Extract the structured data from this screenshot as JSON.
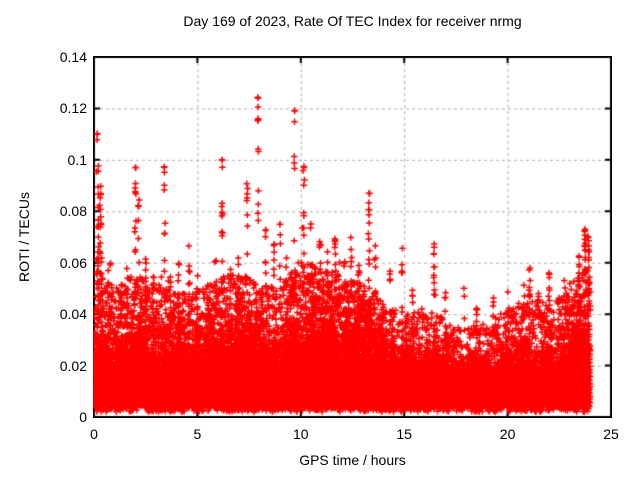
{
  "chart_data": {
    "type": "scatter",
    "title": "Day 169 of 2023, Rate Of TEC Index for receiver nrmg",
    "xlabel": "GPS time / hours",
    "ylabel": "ROTI / TECUs",
    "xlim": [
      0,
      25
    ],
    "ylim": [
      0,
      0.14
    ],
    "xticks": [
      0,
      5,
      10,
      15,
      20,
      25
    ],
    "xtick_labels": [
      "0",
      "5",
      "10",
      "15",
      "20",
      "25"
    ],
    "yticks": [
      0,
      0.02,
      0.04,
      0.06,
      0.08,
      0.1,
      0.12,
      0.14
    ],
    "ytick_labels": [
      "0",
      "0.02",
      "0.04",
      "0.06",
      "0.08",
      "0.1",
      "0.12",
      "0.14"
    ],
    "grid": true,
    "grid_style": "dashed",
    "legend": "none",
    "marker": "plus",
    "marker_color": "#ff0000",
    "grid_color": "#b0b0b0",
    "axis_color": "#000000",
    "background": "#ffffff",
    "data_hours_range": [
      0,
      24
    ],
    "seed": 20230169,
    "density_model": {
      "comment": "dense ROTI scatter: solid band near 0.003-0.03 TECU all day, speckle above it, per-hour envelopes h=0..24",
      "columns_per_hour": 21,
      "y_bottom": 0.002,
      "core_top": [
        0.03,
        0.026,
        0.026,
        0.028,
        0.026,
        0.026,
        0.028,
        0.03,
        0.028,
        0.026,
        0.03,
        0.032,
        0.03,
        0.03,
        0.026,
        0.022,
        0.024,
        0.022,
        0.02,
        0.022,
        0.022,
        0.024,
        0.022,
        0.026,
        0.03
      ],
      "speckle_top": [
        0.058,
        0.05,
        0.056,
        0.052,
        0.048,
        0.048,
        0.054,
        0.056,
        0.052,
        0.05,
        0.062,
        0.06,
        0.054,
        0.052,
        0.044,
        0.04,
        0.044,
        0.038,
        0.034,
        0.038,
        0.042,
        0.046,
        0.044,
        0.052,
        0.062
      ],
      "speckle_per_column": [
        9,
        8,
        9,
        8,
        8,
        8,
        9,
        9,
        8,
        8,
        11,
        11,
        10,
        10,
        7,
        5,
        6,
        5,
        4,
        5,
        6,
        7,
        6,
        8,
        10
      ]
    },
    "spike_clusters": [
      [
        0.15,
        0.11,
        8
      ],
      [
        0.2,
        0.098,
        16
      ],
      [
        0.3,
        0.09,
        14
      ],
      [
        0.35,
        0.075,
        8
      ],
      [
        0.8,
        0.06,
        8
      ],
      [
        1.3,
        0.052,
        7
      ],
      [
        1.6,
        0.058,
        7
      ],
      [
        2.0,
        0.097,
        14
      ],
      [
        2.15,
        0.085,
        8
      ],
      [
        2.5,
        0.062,
        8
      ],
      [
        2.9,
        0.055,
        6
      ],
      [
        3.4,
        0.097,
        11
      ],
      [
        3.7,
        0.055,
        6
      ],
      [
        4.1,
        0.06,
        7
      ],
      [
        4.6,
        0.066,
        9
      ],
      [
        5.0,
        0.055,
        6
      ],
      [
        5.5,
        0.052,
        6
      ],
      [
        5.9,
        0.06,
        6
      ],
      [
        6.2,
        0.1,
        13
      ],
      [
        6.6,
        0.058,
        6
      ],
      [
        7.0,
        0.062,
        7
      ],
      [
        7.4,
        0.09,
        11
      ],
      [
        7.93,
        0.124,
        13
      ],
      [
        8.3,
        0.073,
        8
      ],
      [
        8.7,
        0.068,
        8
      ],
      [
        9.0,
        0.075,
        7
      ],
      [
        9.3,
        0.058,
        6
      ],
      [
        9.7,
        0.119,
        9
      ],
      [
        10.15,
        0.097,
        16
      ],
      [
        10.5,
        0.075,
        9
      ],
      [
        10.9,
        0.068,
        8
      ],
      [
        11.3,
        0.065,
        7
      ],
      [
        11.65,
        0.07,
        9
      ],
      [
        12.1,
        0.06,
        6
      ],
      [
        12.45,
        0.07,
        8
      ],
      [
        12.8,
        0.058,
        6
      ],
      [
        13.3,
        0.087,
        16
      ],
      [
        13.6,
        0.067,
        7
      ],
      [
        14.3,
        0.056,
        6
      ],
      [
        14.9,
        0.065,
        8
      ],
      [
        15.4,
        0.048,
        7
      ],
      [
        16.45,
        0.066,
        12
      ],
      [
        17.0,
        0.048,
        5
      ],
      [
        17.9,
        0.05,
        3
      ],
      [
        18.5,
        0.042,
        5
      ],
      [
        19.3,
        0.046,
        6
      ],
      [
        20.0,
        0.048,
        6
      ],
      [
        20.8,
        0.05,
        8
      ],
      [
        21.05,
        0.058,
        10
      ],
      [
        21.5,
        0.048,
        6
      ],
      [
        22.0,
        0.056,
        10
      ],
      [
        22.5,
        0.046,
        6
      ],
      [
        23.0,
        0.052,
        8
      ],
      [
        23.45,
        0.062,
        12
      ],
      [
        23.75,
        0.073,
        22
      ],
      [
        23.92,
        0.07,
        18
      ]
    ],
    "peak_points": [
      [
        7.93,
        0.124
      ],
      [
        9.7,
        0.119
      ],
      [
        0.15,
        0.11
      ],
      [
        6.2,
        0.1
      ],
      [
        2.0,
        0.097
      ],
      [
        3.4,
        0.097
      ],
      [
        10.15,
        0.097
      ],
      [
        13.3,
        0.087
      ],
      [
        23.75,
        0.073
      ],
      [
        16.45,
        0.066
      ]
    ]
  }
}
